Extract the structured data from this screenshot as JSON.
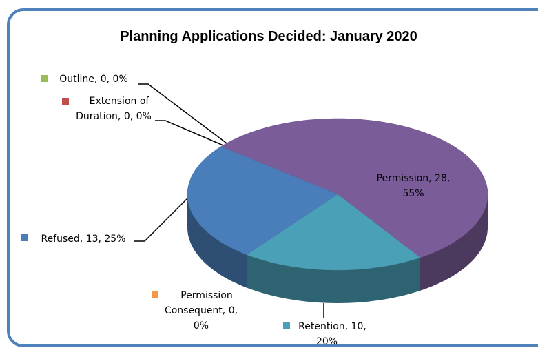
{
  "chart_data": {
    "type": "pie",
    "title": "Planning Applications Decided: January 2020",
    "categories": [
      "Permission",
      "Retention",
      "Refused",
      "Outline",
      "Extension of Duration",
      "Permission Consequent"
    ],
    "values": [
      28,
      10,
      13,
      0,
      0,
      0
    ],
    "value_labels": [
      "Permission, 28, 55%",
      "Retention, 10, 20%",
      "Refused, 13, 25%",
      "Outline, 0, 0%",
      "Extension of Duration, 0, 0%",
      "Permission Consequent, 0, 0%"
    ],
    "colors": [
      "#7a5c98",
      "#4aa0b6",
      "#4a7ebb",
      "#9bbb59",
      "#c0504d",
      "#f79646"
    ]
  }
}
